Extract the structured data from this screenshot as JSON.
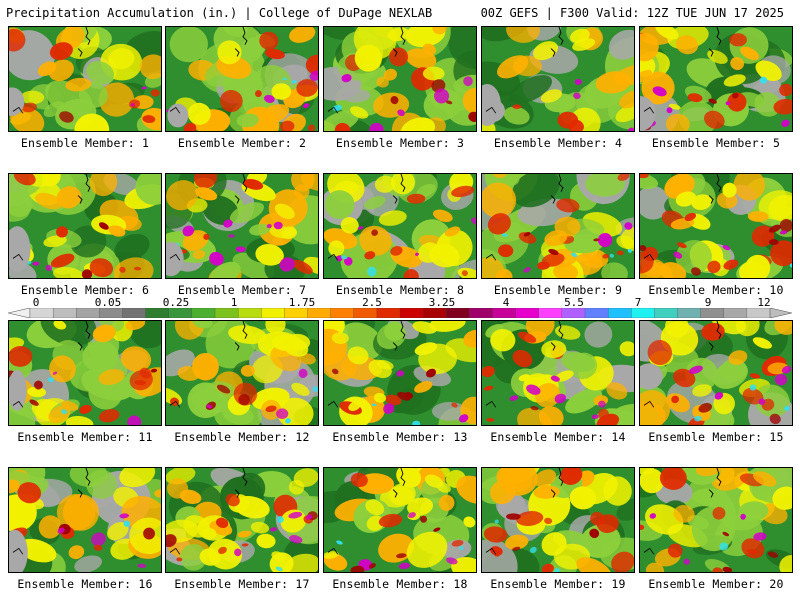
{
  "header": {
    "left": "Precipitation Accumulation (in.) | College of DuPage NEXLAB",
    "right": "00Z GEFS | F300 Valid: 12Z TUE JUN 17 2025"
  },
  "colorbar": {
    "ticks": [
      "0",
      "0.05",
      "0.25",
      "1",
      "1.75",
      "2.5",
      "3.25",
      "4",
      "5.5",
      "7",
      "9",
      "12"
    ],
    "colors": [
      "#d6d6d6",
      "#bdbdbd",
      "#a4a4a4",
      "#8c8c8c",
      "#737373",
      "#2f7d2f",
      "#3a963a",
      "#4caf2f",
      "#7cc21c",
      "#b8dc10",
      "#f0f000",
      "#ffd000",
      "#ffaa00",
      "#ff8000",
      "#f05a00",
      "#e02a00",
      "#cc0000",
      "#a80000",
      "#800020",
      "#a0006a",
      "#c8009a",
      "#e600cc",
      "#ff40ff",
      "#b060ff",
      "#6080ff",
      "#20c0ff",
      "#20f0f0",
      "#40d0c0",
      "#70b0b0",
      "#909090",
      "#a8a8a8",
      "#c8c8c8"
    ]
  },
  "members": [
    {
      "label": "Ensemble Member: 1"
    },
    {
      "label": "Ensemble Member: 2"
    },
    {
      "label": "Ensemble Member: 3"
    },
    {
      "label": "Ensemble Member: 4"
    },
    {
      "label": "Ensemble Member: 5"
    },
    {
      "label": "Ensemble Member: 6"
    },
    {
      "label": "Ensemble Member: 7"
    },
    {
      "label": "Ensemble Member: 8"
    },
    {
      "label": "Ensemble Member: 9"
    },
    {
      "label": "Ensemble Member: 10"
    },
    {
      "label": "Ensemble Member: 11"
    },
    {
      "label": "Ensemble Member: 12"
    },
    {
      "label": "Ensemble Member: 13"
    },
    {
      "label": "Ensemble Member: 14"
    },
    {
      "label": "Ensemble Member: 15"
    },
    {
      "label": "Ensemble Member: 16"
    },
    {
      "label": "Ensemble Member: 17"
    },
    {
      "label": "Ensemble Member: 18"
    },
    {
      "label": "Ensemble Member: 19"
    },
    {
      "label": "Ensemble Member: 20"
    }
  ],
  "map_palette": {
    "dry": "#a8a8a8",
    "light_green": "#8ccf3c",
    "green": "#2f8f2f",
    "dark_green": "#1f6f1f",
    "yellow": "#f2f200",
    "orange": "#ffb000",
    "red": "#e02a00",
    "dark_red": "#a00000",
    "magenta": "#d400c8",
    "cyan": "#30e0f0"
  }
}
